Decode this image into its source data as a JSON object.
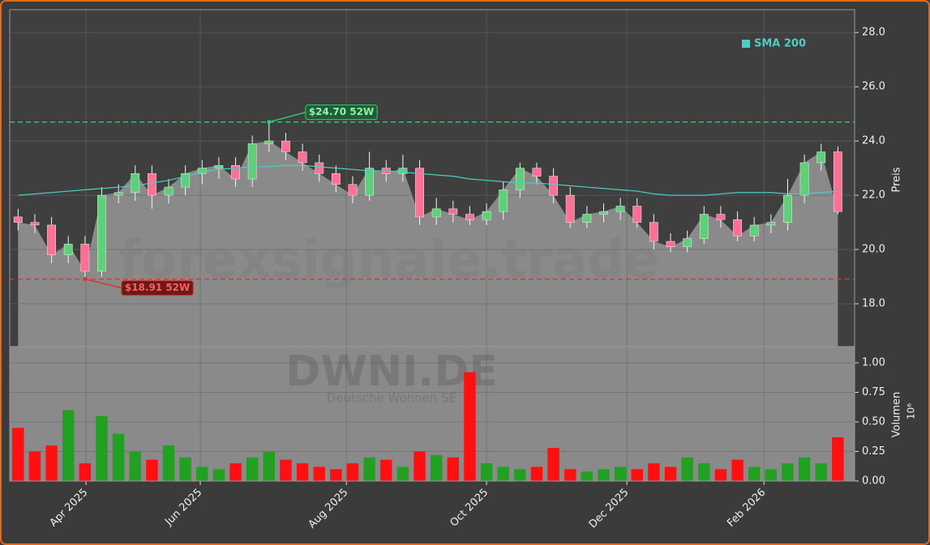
{
  "chart_data": [
    {
      "type": "candlestick",
      "ylabel": "Preis",
      "legend": "top-right",
      "watermark": "forexsignale.trade",
      "x": [
        0,
        1,
        2,
        3,
        4,
        5,
        6,
        7,
        8,
        9,
        10,
        11,
        12,
        13,
        14,
        15,
        16,
        17,
        18,
        19,
        20,
        21,
        22,
        23,
        24,
        25,
        26,
        27,
        28,
        29,
        30,
        31,
        32,
        33,
        34,
        35,
        36,
        37,
        38,
        39,
        40,
        41,
        42,
        43,
        44,
        45,
        46,
        47,
        48,
        49
      ],
      "open": [
        21.2,
        21.0,
        20.9,
        19.8,
        20.2,
        19.2,
        22.0,
        22.1,
        22.8,
        22.0,
        22.3,
        22.8,
        23.0,
        23.1,
        22.6,
        23.9,
        24.0,
        23.6,
        23.2,
        22.8,
        22.4,
        22.0,
        23.0,
        22.8,
        23.0,
        21.2,
        21.5,
        21.3,
        21.1,
        21.4,
        22.2,
        23.0,
        22.7,
        22.0,
        21.0,
        21.3,
        21.4,
        21.6,
        21.0,
        20.3,
        20.1,
        20.4,
        21.3,
        21.1,
        20.5,
        20.9,
        21.0,
        22.0,
        23.2,
        23.6
      ],
      "high": [
        21.5,
        21.3,
        21.2,
        20.5,
        20.5,
        22.3,
        22.4,
        23.1,
        23.1,
        22.6,
        23.1,
        23.3,
        23.4,
        23.4,
        24.2,
        24.7,
        24.3,
        23.9,
        23.5,
        23.1,
        22.7,
        23.6,
        23.3,
        23.5,
        23.3,
        21.9,
        21.8,
        21.6,
        21.7,
        22.5,
        23.2,
        23.2,
        23.0,
        22.3,
        21.6,
        21.7,
        21.9,
        21.9,
        21.3,
        20.6,
        20.7,
        21.6,
        21.6,
        21.4,
        21.2,
        21.3,
        22.6,
        23.5,
        23.9,
        23.8
      ],
      "low": [
        20.7,
        20.6,
        19.5,
        19.5,
        18.91,
        19.0,
        21.7,
        21.8,
        21.5,
        21.7,
        22.0,
        22.4,
        22.6,
        22.3,
        22.3,
        23.6,
        23.3,
        22.9,
        22.5,
        22.1,
        21.7,
        21.8,
        22.5,
        22.5,
        20.9,
        20.9,
        21.0,
        20.9,
        20.9,
        21.1,
        21.9,
        22.4,
        21.7,
        20.8,
        20.8,
        21.0,
        21.1,
        20.8,
        20.0,
        19.9,
        19.9,
        20.2,
        20.8,
        20.3,
        20.3,
        20.6,
        20.7,
        21.7,
        22.9,
        21.3
      ],
      "close": [
        21.0,
        20.9,
        19.8,
        20.2,
        19.2,
        22.0,
        22.1,
        22.8,
        22.0,
        22.3,
        22.8,
        23.0,
        23.1,
        22.6,
        23.9,
        24.0,
        23.6,
        23.2,
        22.8,
        22.4,
        22.0,
        23.0,
        22.8,
        23.0,
        21.2,
        21.5,
        21.3,
        21.1,
        21.4,
        22.2,
        23.0,
        22.7,
        22.0,
        21.0,
        21.3,
        21.4,
        21.6,
        21.0,
        20.3,
        20.1,
        20.4,
        21.3,
        21.1,
        20.5,
        20.9,
        21.0,
        22.0,
        23.2,
        23.6,
        21.4
      ],
      "up_color": "#5fd07a",
      "down_color": "#ff7094",
      "series": [
        {
          "name": "SMA 200",
          "color": "#4ecdc4",
          "values": [
            22.0,
            22.05,
            22.1,
            22.15,
            22.2,
            22.25,
            22.3,
            22.35,
            22.45,
            22.55,
            22.7,
            22.85,
            22.95,
            23.0,
            23.05,
            23.05,
            23.1,
            23.1,
            23.05,
            23.0,
            22.95,
            22.9,
            22.9,
            22.85,
            22.8,
            22.75,
            22.7,
            22.6,
            22.55,
            22.5,
            22.45,
            22.45,
            22.4,
            22.35,
            22.3,
            22.25,
            22.2,
            22.15,
            22.05,
            22.0,
            22.0,
            22.0,
            22.05,
            22.1,
            22.1,
            22.1,
            22.05,
            22.05,
            22.1,
            22.15
          ]
        }
      ],
      "lines": [
        {
          "value": 24.7,
          "x": 15,
          "label": "$24.70 52W",
          "color": "#2ecc71"
        },
        {
          "value": 18.91,
          "x": 4,
          "label": "$18.91 52W",
          "color": "#e03030"
        }
      ],
      "xlim": [
        -0.5,
        50
      ],
      "ylim": [
        16.42,
        28.84
      ],
      "yticks": [
        {
          "value": 18,
          "label": "18.0"
        },
        {
          "value": 20,
          "label": "20.0"
        },
        {
          "value": 22,
          "label": "22.0"
        },
        {
          "value": 24,
          "label": "24.0"
        },
        {
          "value": 26,
          "label": "26.0"
        },
        {
          "value": 28,
          "label": "28.0"
        }
      ],
      "grid": true
    },
    {
      "type": "bar",
      "ylabel": "Volumen",
      "multiplier": "10⁶",
      "watermark": "DWNI.DE",
      "subwatermark": "Deutsche Wohnen SE",
      "values": [
        0.45,
        0.25,
        0.3,
        0.6,
        0.15,
        0.55,
        0.4,
        0.25,
        0.18,
        0.3,
        0.2,
        0.12,
        0.1,
        0.15,
        0.2,
        0.25,
        0.18,
        0.15,
        0.12,
        0.1,
        0.15,
        0.2,
        0.18,
        0.12,
        0.25,
        0.22,
        0.2,
        0.92,
        0.15,
        0.12,
        0.1,
        0.12,
        0.28,
        0.1,
        0.08,
        0.1,
        0.12,
        0.1,
        0.15,
        0.12,
        0.2,
        0.15,
        0.1,
        0.18,
        0.12,
        0.1,
        0.15,
        0.2,
        0.15,
        0.37
      ],
      "up_color": "#22a022",
      "down_color": "#ff1010",
      "xlim": [
        -0.5,
        50
      ],
      "ylim": [
        0,
        1.137
      ],
      "yticks": [
        {
          "value": 0,
          "label": "0.00"
        },
        {
          "value": 0.25,
          "label": "0.25"
        },
        {
          "value": 0.5,
          "label": "0.50"
        },
        {
          "value": 0.75,
          "label": "0.75"
        },
        {
          "value": 1,
          "label": "1.00"
        }
      ],
      "xticks": [
        {
          "value": 4.06,
          "label": "Apr 2025"
        },
        {
          "value": 10.89,
          "label": "Jun 2025"
        },
        {
          "value": 19.62,
          "label": "Aug 2025"
        },
        {
          "value": 28.0,
          "label": "Oct 2025"
        },
        {
          "value": 36.39,
          "label": "Dec 2025"
        },
        {
          "value": 44.58,
          "label": "Feb 2026"
        }
      ],
      "grid": true
    }
  ]
}
